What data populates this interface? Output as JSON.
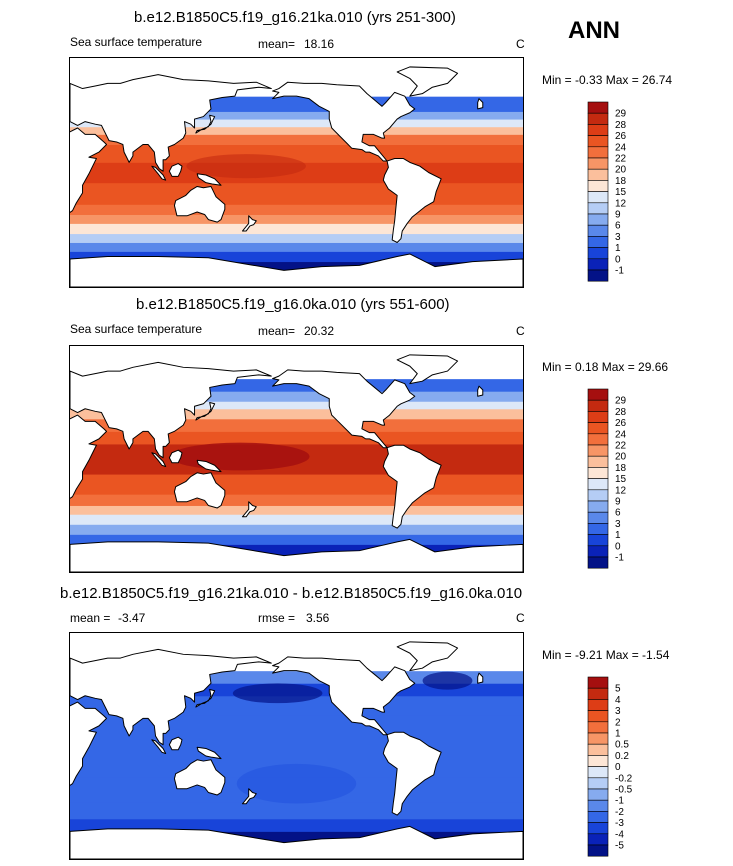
{
  "season": "ANN",
  "panels": [
    {
      "title": "b.e12.B1850C5.f19_g16.21ka.010 (yrs 251-300)",
      "left_label": "Sea surface temperature",
      "mean_label": "mean=",
      "mean_value": "18.16",
      "units": "C",
      "minmax": "Min =  -0.33 Max =  26.74",
      "levels": [
        "29",
        "28",
        "26",
        "24",
        "22",
        "20",
        "18",
        "15",
        "12",
        "9",
        "6",
        "3",
        "1",
        "0",
        "-1"
      ],
      "colors": [
        "#a50f0f",
        "#c42a10",
        "#dd3d16",
        "#ea5522",
        "#f26f3c",
        "#f79566",
        "#fbbf9c",
        "#fde6d6",
        "#dde8f8",
        "#b5cdf5",
        "#86abef",
        "#5a88ea",
        "#3467e6",
        "#1844d9",
        "#0a22b8",
        "#031287"
      ]
    },
    {
      "title": "b.e12.B1850C5.f19_g16.0ka.010 (yrs 551-600)",
      "left_label": "Sea surface temperature",
      "mean_label": "mean=",
      "mean_value": "20.32",
      "units": "C",
      "minmax": "Min =   0.18 Max = 29.66",
      "levels": [
        "29",
        "28",
        "26",
        "24",
        "22",
        "20",
        "18",
        "15",
        "12",
        "9",
        "6",
        "3",
        "1",
        "0",
        "-1"
      ],
      "colors": [
        "#a50f0f",
        "#c42a10",
        "#dd3d16",
        "#ea5522",
        "#f26f3c",
        "#f79566",
        "#fbbf9c",
        "#fde6d6",
        "#dde8f8",
        "#b5cdf5",
        "#86abef",
        "#5a88ea",
        "#3467e6",
        "#1844d9",
        "#0a22b8",
        "#031287"
      ]
    },
    {
      "title": "b.e12.B1850C5.f19_g16.21ka.010 - b.e12.B1850C5.f19_g16.0ka.010",
      "left_label": "mean =",
      "left_value": "-3.47",
      "mean_label": "rmse =",
      "mean_value": "3.56",
      "units": "C",
      "minmax": "Min =  -9.21 Max =  -1.54",
      "levels": [
        "5",
        "4",
        "3",
        "2",
        "1",
        "0.5",
        "0.2",
        "0",
        "-0.2",
        "-0.5",
        "-1",
        "-2",
        "-3",
        "-4",
        "-5"
      ],
      "colors": [
        "#a50f0f",
        "#c42a10",
        "#dd3d16",
        "#ea5522",
        "#f26f3c",
        "#f79566",
        "#fbbf9c",
        "#fde6d6",
        "#dde8f8",
        "#b5cdf5",
        "#86abef",
        "#5a88ea",
        "#3467e6",
        "#1844d9",
        "#0a22b8",
        "#031287"
      ]
    }
  ]
}
